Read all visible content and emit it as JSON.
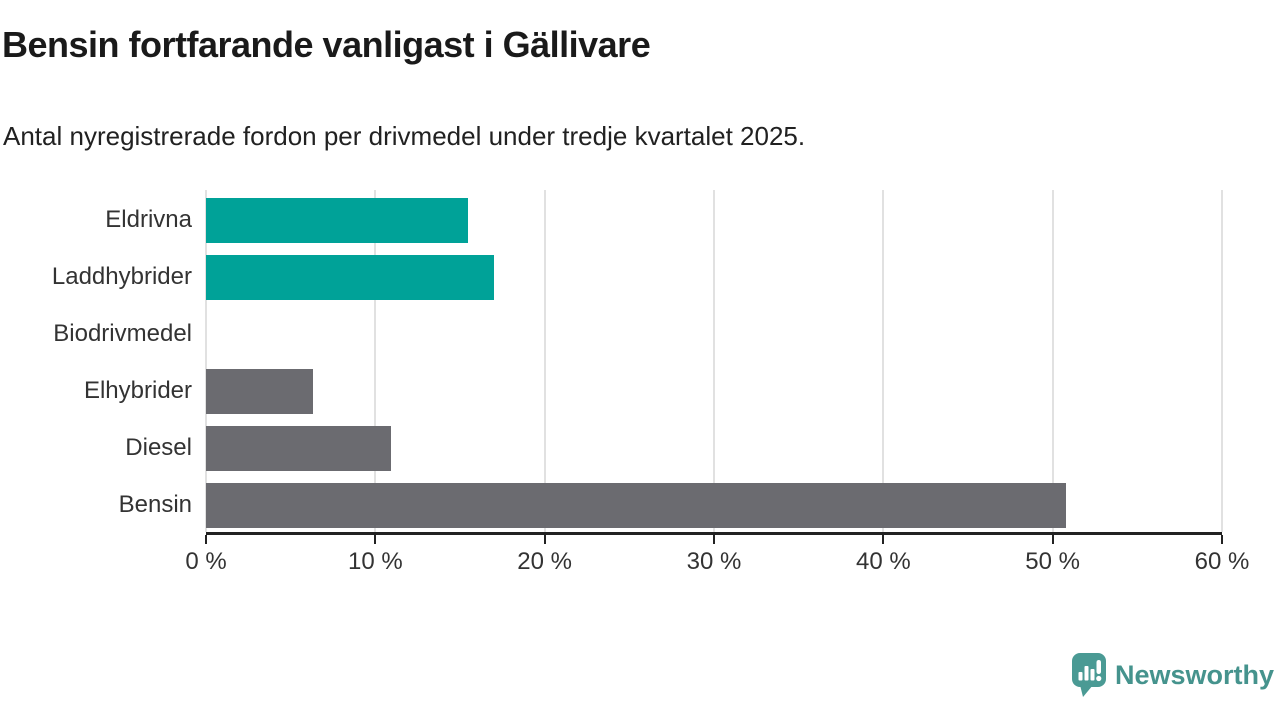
{
  "title": "Bensin fortfarande vanligast i Gällivare",
  "subtitle": "Antal nyregistrerade fordon per drivmedel under tredje kvartalet 2025.",
  "branding": {
    "logo_text": "Newsworthy",
    "logo_icon": "speech-bubble-bar-chart-icon",
    "logo_color": "#45938d",
    "logo_icon_color": "#4a9a94"
  },
  "colors": {
    "highlight_teal": "#00a298",
    "default_gray": "#6b6b70",
    "gridline": "#e1e1e1",
    "axis_line": "#222222",
    "axis_text": "#333333",
    "title_text": "#1a1a1a"
  },
  "chart_data": {
    "type": "bar",
    "orientation": "horizontal",
    "title": "Bensin fortfarande vanligast i Gällivare",
    "subtitle": "Antal nyregistrerade fordon per drivmedel under tredje kvartalet 2025.",
    "categories": [
      "Eldrivna",
      "Laddhybrider",
      "Biodrivmedel",
      "Elhybrider",
      "Diesel",
      "Bensin"
    ],
    "values": [
      15.5,
      17.0,
      0,
      6.3,
      10.9,
      50.8
    ],
    "unit": "%",
    "bar_colors": [
      "#00a298",
      "#00a298",
      "#6b6b70",
      "#6b6b70",
      "#6b6b70",
      "#6b6b70"
    ],
    "xlabel": "",
    "ylabel": "",
    "xlim": [
      0,
      60
    ],
    "x_ticks": [
      0,
      10,
      20,
      30,
      40,
      50,
      60
    ],
    "x_tick_labels": [
      "0 %",
      "10 %",
      "20 %",
      "30 %",
      "40 %",
      "50 %",
      "60 %"
    ],
    "grid": true,
    "legend": false
  }
}
